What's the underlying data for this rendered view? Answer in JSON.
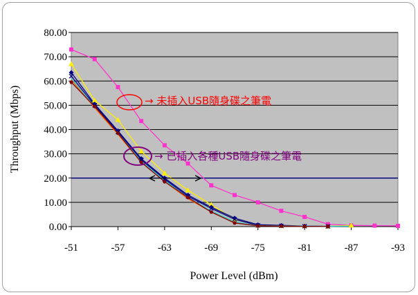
{
  "chart_data": {
    "type": "line",
    "xlabel": "Power Level (dBm)",
    "ylabel": "Throughput (Mbps)",
    "ylim": [
      0,
      80
    ],
    "xlim": [
      -51,
      -93
    ],
    "yticks": [
      "0.00",
      "10.00",
      "20.00",
      "30.00",
      "40.00",
      "50.00",
      "60.00",
      "70.00",
      "80.00"
    ],
    "xticks": [
      "-51",
      "-57",
      "-63",
      "-69",
      "-75",
      "-81",
      "-87",
      "-93"
    ],
    "grid": true,
    "legend": "none",
    "background": "#c0c0c0",
    "series": [
      {
        "color": "#ff33cc",
        "marker": "square",
        "x": [
          -51,
          -54,
          -57,
          -60,
          -63,
          -66,
          -69,
          -72,
          -75,
          -78,
          -81,
          -84,
          -87,
          -90,
          -93
        ],
        "y": [
          73.0,
          69.0,
          57.5,
          43.5,
          33.5,
          26.0,
          17.0,
          13.0,
          10.0,
          6.5,
          4.0,
          1.0,
          0.5,
          0.4,
          0.3
        ]
      },
      {
        "color": "#ffee00",
        "marker": "triangle",
        "x": [
          -51,
          -54,
          -57,
          -60,
          -63,
          -66,
          -69,
          -72,
          -75,
          -78,
          -81,
          -84,
          -87
        ],
        "y": [
          67.0,
          52.0,
          44.0,
          31.0,
          22.0,
          15.0,
          9.0,
          3.0,
          0.5,
          0.3,
          0.2,
          0.1,
          0.5
        ]
      },
      {
        "color": "#000080",
        "marker": "diamond",
        "x": [
          -51,
          -54,
          -57,
          -60,
          -63,
          -66,
          -69,
          -72,
          -75,
          -78,
          -81,
          -84
        ],
        "y": [
          63.5,
          50.5,
          39.5,
          28.0,
          20.0,
          13.0,
          8.0,
          3.5,
          0.8,
          0.5,
          0.2,
          0.1
        ]
      },
      {
        "color": "#000080",
        "marker": "x",
        "x": [
          -51,
          -54,
          -57,
          -60,
          -63,
          -66,
          -69,
          -72,
          -75,
          -78,
          -81,
          -84
        ],
        "y": [
          62.0,
          50.0,
          39.0,
          27.5,
          19.5,
          12.5,
          7.5,
          3.0,
          0.5,
          0.3,
          0.2,
          0.1
        ]
      },
      {
        "color": "#33cccc",
        "marker": "none",
        "x": [
          -51,
          -54,
          -57,
          -60,
          -63,
          -66,
          -69,
          -72,
          -75,
          -78,
          -81,
          -84,
          -87
        ],
        "y": [
          61.0,
          49.5,
          38.5,
          27.0,
          19.0,
          12.0,
          6.5,
          2.0,
          0.4,
          0.3,
          0.2,
          0.1,
          0.2
        ]
      },
      {
        "color": "#ff6600",
        "marker": "none",
        "x": [
          -51,
          -54,
          -57,
          -60,
          -63,
          -66,
          -69,
          -72,
          -75,
          -78,
          -81
        ],
        "y": [
          60.5,
          49.0,
          38.0,
          26.5,
          18.5,
          11.5,
          6.0,
          1.5,
          0.4,
          0.2,
          0.1
        ]
      },
      {
        "color": "#800000",
        "marker": "circle",
        "x": [
          -51,
          -54,
          -57,
          -60,
          -63,
          -66,
          -69,
          -72,
          -75,
          -78,
          -81,
          -84
        ],
        "y": [
          59.5,
          49.5,
          38.5,
          26.5,
          18.5,
          12.0,
          6.0,
          1.5,
          0.3,
          0.2,
          0.1,
          0.1
        ]
      }
    ],
    "reference_line": {
      "y": 20,
      "color": "#000080"
    },
    "annotations": [
      {
        "text": "→ 未插入USB隨身碟之筆電",
        "color": "#ff0000"
      },
      {
        "text": "→ 已插入各種USB隨身碟之筆電",
        "color": "#800080"
      }
    ]
  }
}
